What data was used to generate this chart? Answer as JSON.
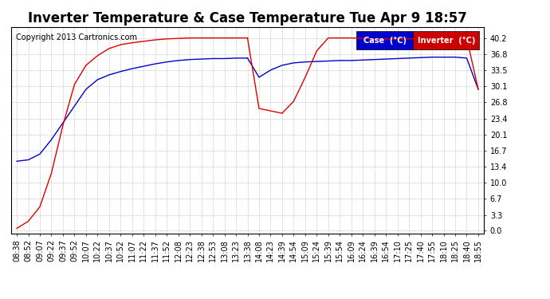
{
  "title": "Inverter Temperature & Case Temperature Tue Apr 9 18:57",
  "copyright": "Copyright 2013 Cartronics.com",
  "legend_case_label": "Case  (°C)",
  "legend_inverter_label": "Inverter  (°C)",
  "legend_case_bg": "#0000cc",
  "legend_inverter_bg": "#cc0000",
  "case_line_color": "#0000cc",
  "inverter_line_color": "#dd0000",
  "background_color": "#ffffff",
  "plot_bg_color": "#ffffff",
  "grid_color": "#bbbbbb",
  "yticks": [
    0.0,
    3.3,
    6.7,
    10.0,
    13.4,
    16.7,
    20.1,
    23.4,
    26.8,
    30.1,
    33.5,
    36.8,
    40.2
  ],
  "ylim": [
    -0.5,
    42.5
  ],
  "title_fontsize": 12,
  "tick_fontsize": 7,
  "x_tick_labels": [
    "08:38",
    "08:52",
    "09:07",
    "09:22",
    "09:37",
    "09:52",
    "10:07",
    "10:22",
    "10:37",
    "10:52",
    "11:07",
    "11:22",
    "11:37",
    "11:52",
    "12:08",
    "12:23",
    "12:38",
    "12:53",
    "13:08",
    "13:23",
    "13:38",
    "14:08",
    "14:23",
    "14:39",
    "14:54",
    "15:09",
    "15:24",
    "15:39",
    "15:54",
    "16:09",
    "16:24",
    "16:39",
    "16:54",
    "17:10",
    "17:25",
    "17:40",
    "17:55",
    "18:10",
    "18:25",
    "18:40",
    "18:55"
  ],
  "case_seg1_y": [
    14.5,
    14.8,
    16.0,
    19.0,
    22.5,
    26.0,
    29.5,
    31.5,
    32.5,
    33.2,
    33.8,
    34.3,
    34.8,
    35.2,
    35.5,
    35.7,
    35.8,
    35.9,
    35.9,
    36.0,
    36.0
  ],
  "case_seg2_y": [
    36.0,
    32.0,
    33.5,
    34.5,
    35.0,
    35.2,
    35.3,
    35.4,
    35.5,
    35.5,
    35.6,
    35.7,
    35.8,
    35.9,
    36.0,
    36.1,
    36.2,
    36.2,
    36.2,
    36.0,
    29.5
  ],
  "inv_seg1_y": [
    0.5,
    2.0,
    5.0,
    12.0,
    22.0,
    30.5,
    34.5,
    36.5,
    38.0,
    38.8,
    39.2,
    39.5,
    39.8,
    40.0,
    40.1,
    40.2,
    40.2,
    40.2,
    40.2,
    40.2,
    40.2
  ],
  "inv_seg2_y": [
    40.2,
    25.5,
    25.0,
    24.5,
    27.0,
    32.0,
    37.5,
    40.2,
    40.2,
    40.2,
    40.1,
    40.0,
    40.0,
    40.0,
    40.0,
    40.0,
    40.0,
    40.1,
    40.2,
    40.2,
    29.5
  ]
}
